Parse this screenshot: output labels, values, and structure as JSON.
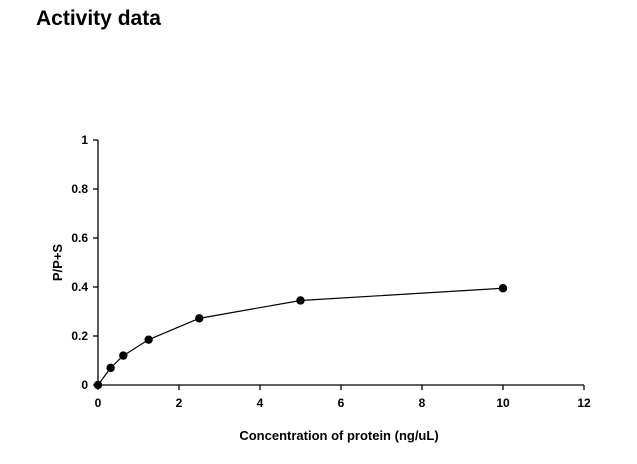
{
  "page": {
    "title": "Activity data"
  },
  "chart_data": {
    "type": "line",
    "title": "",
    "xlabel": "Concentration of protein (ng/uL)",
    "ylabel": "P/P+S",
    "xlim": [
      0,
      12
    ],
    "ylim": [
      0,
      1
    ],
    "x_ticks": [
      0,
      2,
      4,
      6,
      8,
      10,
      12
    ],
    "y_ticks": [
      0,
      0.2,
      0.4,
      0.6,
      0.8,
      1
    ],
    "y_tick_labels": [
      "0",
      "0.2",
      "0.4",
      "0.6",
      "0.8",
      "1"
    ],
    "grid": false,
    "legend": "none",
    "series": [
      {
        "color": "#000000",
        "marker": "circle",
        "points": [
          {
            "x": 0,
            "y": 0
          },
          {
            "x": 0.3125,
            "y": 0.07
          },
          {
            "x": 0.625,
            "y": 0.12
          },
          {
            "x": 1.25,
            "y": 0.185
          },
          {
            "x": 2.5,
            "y": 0.272
          },
          {
            "x": 5,
            "y": 0.345
          },
          {
            "x": 10,
            "y": 0.395
          }
        ]
      }
    ]
  }
}
